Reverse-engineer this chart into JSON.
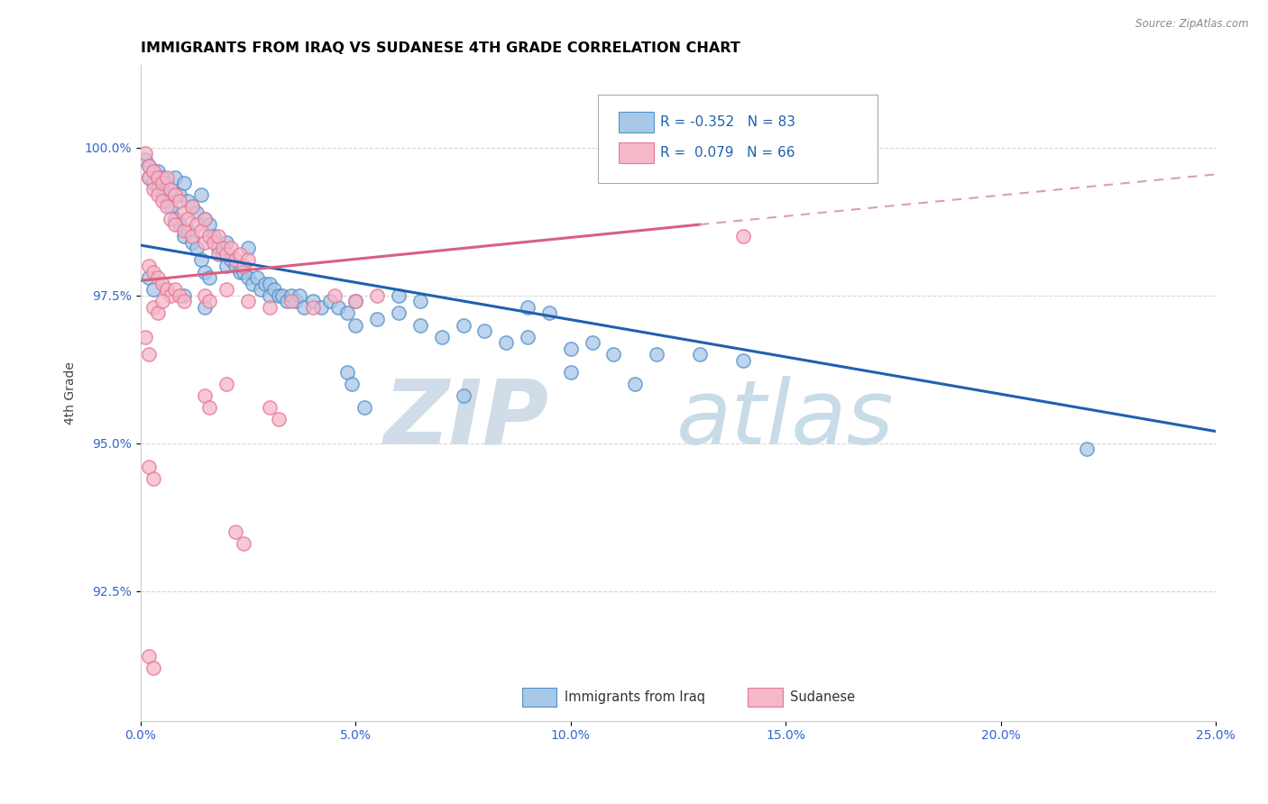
{
  "title": "IMMIGRANTS FROM IRAQ VS SUDANESE 4TH GRADE CORRELATION CHART",
  "source": "Source: ZipAtlas.com",
  "ylabel": "4th Grade",
  "legend_R1": "-0.352",
  "legend_N1": "83",
  "legend_R2": "0.079",
  "legend_N2": "66",
  "blue_color": "#a8c8e8",
  "pink_color": "#f4b8c8",
  "blue_edge_color": "#5590c8",
  "pink_edge_color": "#e87898",
  "blue_line_color": "#2060b0",
  "pink_line_color": "#d86080",
  "pink_dash_color": "#d8a0b0",
  "xmin": 0.0,
  "xmax": 0.25,
  "ymin": 90.3,
  "ymax": 101.4,
  "xtick_vals": [
    0.0,
    0.05,
    0.1,
    0.15,
    0.2,
    0.25
  ],
  "ytick_vals": [
    92.5,
    95.0,
    97.5,
    100.0
  ],
  "blue_trendline": [
    [
      0.0,
      98.35
    ],
    [
      0.25,
      95.2
    ]
  ],
  "pink_trendline_solid": [
    [
      0.0,
      97.75
    ],
    [
      0.13,
      98.7
    ]
  ],
  "pink_trendline_dashed": [
    [
      0.13,
      98.7
    ],
    [
      0.25,
      99.55
    ]
  ],
  "blue_scatter": [
    [
      0.001,
      99.8
    ],
    [
      0.002,
      99.7
    ],
    [
      0.002,
      99.5
    ],
    [
      0.003,
      99.6
    ],
    [
      0.003,
      99.4
    ],
    [
      0.004,
      99.6
    ],
    [
      0.004,
      99.3
    ],
    [
      0.005,
      99.5
    ],
    [
      0.005,
      99.2
    ],
    [
      0.006,
      99.4
    ],
    [
      0.006,
      99.1
    ],
    [
      0.007,
      99.3
    ],
    [
      0.007,
      99.0
    ],
    [
      0.008,
      99.5
    ],
    [
      0.008,
      98.8
    ],
    [
      0.009,
      99.2
    ],
    [
      0.009,
      98.7
    ],
    [
      0.01,
      99.4
    ],
    [
      0.01,
      98.5
    ],
    [
      0.011,
      99.1
    ],
    [
      0.011,
      98.6
    ],
    [
      0.012,
      99.0
    ],
    [
      0.012,
      98.4
    ],
    [
      0.013,
      98.9
    ],
    [
      0.013,
      98.3
    ],
    [
      0.014,
      99.2
    ],
    [
      0.014,
      98.1
    ],
    [
      0.015,
      98.8
    ],
    [
      0.015,
      97.9
    ],
    [
      0.016,
      98.7
    ],
    [
      0.016,
      97.8
    ],
    [
      0.017,
      98.5
    ],
    [
      0.018,
      98.3
    ],
    [
      0.019,
      98.2
    ],
    [
      0.02,
      98.4
    ],
    [
      0.02,
      98.0
    ],
    [
      0.021,
      98.1
    ],
    [
      0.022,
      98.0
    ],
    [
      0.023,
      97.9
    ],
    [
      0.024,
      97.9
    ],
    [
      0.025,
      98.3
    ],
    [
      0.025,
      97.8
    ],
    [
      0.026,
      97.7
    ],
    [
      0.027,
      97.8
    ],
    [
      0.028,
      97.6
    ],
    [
      0.029,
      97.7
    ],
    [
      0.03,
      97.7
    ],
    [
      0.03,
      97.5
    ],
    [
      0.031,
      97.6
    ],
    [
      0.032,
      97.5
    ],
    [
      0.033,
      97.5
    ],
    [
      0.034,
      97.4
    ],
    [
      0.035,
      97.5
    ],
    [
      0.036,
      97.4
    ],
    [
      0.037,
      97.5
    ],
    [
      0.038,
      97.3
    ],
    [
      0.04,
      97.4
    ],
    [
      0.042,
      97.3
    ],
    [
      0.044,
      97.4
    ],
    [
      0.046,
      97.3
    ],
    [
      0.048,
      97.2
    ],
    [
      0.05,
      97.4
    ],
    [
      0.05,
      97.0
    ],
    [
      0.055,
      97.1
    ],
    [
      0.06,
      97.2
    ],
    [
      0.065,
      97.0
    ],
    [
      0.07,
      96.8
    ],
    [
      0.075,
      97.0
    ],
    [
      0.08,
      96.9
    ],
    [
      0.085,
      96.7
    ],
    [
      0.09,
      96.8
    ],
    [
      0.1,
      96.6
    ],
    [
      0.105,
      96.7
    ],
    [
      0.11,
      96.5
    ],
    [
      0.12,
      96.5
    ],
    [
      0.13,
      96.5
    ],
    [
      0.14,
      96.4
    ],
    [
      0.06,
      97.5
    ],
    [
      0.065,
      97.4
    ],
    [
      0.09,
      97.3
    ],
    [
      0.095,
      97.2
    ],
    [
      0.048,
      96.2
    ],
    [
      0.049,
      96.0
    ],
    [
      0.052,
      95.6
    ],
    [
      0.075,
      95.8
    ],
    [
      0.1,
      96.2
    ],
    [
      0.115,
      96.0
    ],
    [
      0.22,
      94.9
    ],
    [
      0.002,
      97.8
    ],
    [
      0.003,
      97.6
    ],
    [
      0.01,
      97.5
    ],
    [
      0.015,
      97.3
    ]
  ],
  "pink_scatter": [
    [
      0.001,
      99.9
    ],
    [
      0.002,
      99.7
    ],
    [
      0.002,
      99.5
    ],
    [
      0.003,
      99.6
    ],
    [
      0.003,
      99.3
    ],
    [
      0.004,
      99.5
    ],
    [
      0.004,
      99.2
    ],
    [
      0.005,
      99.4
    ],
    [
      0.005,
      99.1
    ],
    [
      0.006,
      99.5
    ],
    [
      0.006,
      99.0
    ],
    [
      0.007,
      99.3
    ],
    [
      0.007,
      98.8
    ],
    [
      0.008,
      99.2
    ],
    [
      0.008,
      98.7
    ],
    [
      0.009,
      99.1
    ],
    [
      0.01,
      98.9
    ],
    [
      0.01,
      98.6
    ],
    [
      0.011,
      98.8
    ],
    [
      0.012,
      99.0
    ],
    [
      0.012,
      98.5
    ],
    [
      0.013,
      98.7
    ],
    [
      0.014,
      98.6
    ],
    [
      0.015,
      98.8
    ],
    [
      0.015,
      98.4
    ],
    [
      0.016,
      98.5
    ],
    [
      0.017,
      98.4
    ],
    [
      0.018,
      98.5
    ],
    [
      0.018,
      98.2
    ],
    [
      0.019,
      98.3
    ],
    [
      0.02,
      98.2
    ],
    [
      0.021,
      98.3
    ],
    [
      0.022,
      98.1
    ],
    [
      0.023,
      98.2
    ],
    [
      0.024,
      98.0
    ],
    [
      0.025,
      98.1
    ],
    [
      0.002,
      98.0
    ],
    [
      0.003,
      97.9
    ],
    [
      0.004,
      97.8
    ],
    [
      0.005,
      97.7
    ],
    [
      0.006,
      97.6
    ],
    [
      0.007,
      97.5
    ],
    [
      0.008,
      97.6
    ],
    [
      0.009,
      97.5
    ],
    [
      0.01,
      97.4
    ],
    [
      0.003,
      97.3
    ],
    [
      0.004,
      97.2
    ],
    [
      0.005,
      97.4
    ],
    [
      0.015,
      97.5
    ],
    [
      0.016,
      97.4
    ],
    [
      0.02,
      97.6
    ],
    [
      0.025,
      97.4
    ],
    [
      0.03,
      97.3
    ],
    [
      0.035,
      97.4
    ],
    [
      0.04,
      97.3
    ],
    [
      0.045,
      97.5
    ],
    [
      0.05,
      97.4
    ],
    [
      0.055,
      97.5
    ],
    [
      0.14,
      98.5
    ],
    [
      0.001,
      96.8
    ],
    [
      0.002,
      96.5
    ],
    [
      0.015,
      95.8
    ],
    [
      0.016,
      95.6
    ],
    [
      0.02,
      96.0
    ],
    [
      0.03,
      95.6
    ],
    [
      0.032,
      95.4
    ],
    [
      0.002,
      94.6
    ],
    [
      0.003,
      94.4
    ],
    [
      0.022,
      93.5
    ],
    [
      0.024,
      93.3
    ],
    [
      0.002,
      91.4
    ],
    [
      0.003,
      91.2
    ]
  ]
}
